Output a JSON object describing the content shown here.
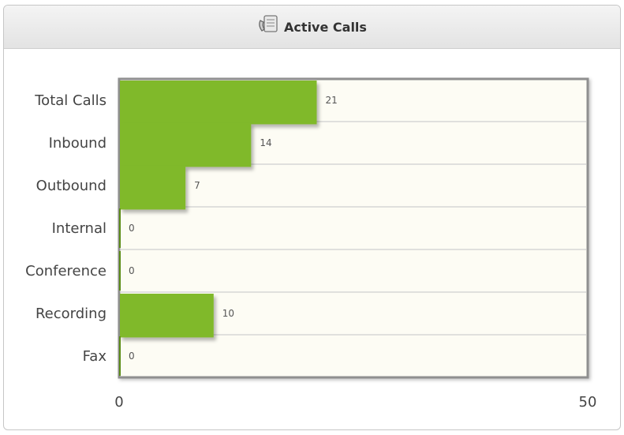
{
  "panel": {
    "title": "Active Calls",
    "icon": "phone-handset-icon"
  },
  "colors": {
    "bar": "#80b929",
    "bar_dark": "#5c8c17",
    "plot_bg": "#fdfcf4",
    "plot_border": "#8f8f8f",
    "grid": "#cfcfcf"
  },
  "chart_data": {
    "type": "bar",
    "orientation": "horizontal",
    "title": "Active Calls",
    "categories": [
      "Total Calls",
      "Inbound",
      "Outbound",
      "Internal",
      "Conference",
      "Recording",
      "Fax"
    ],
    "values": [
      21,
      14,
      7,
      0,
      0,
      10,
      0
    ],
    "xlim": [
      0,
      50
    ],
    "xticks": [
      0,
      50
    ],
    "grid": true,
    "legend": "none",
    "data_labels": true
  }
}
